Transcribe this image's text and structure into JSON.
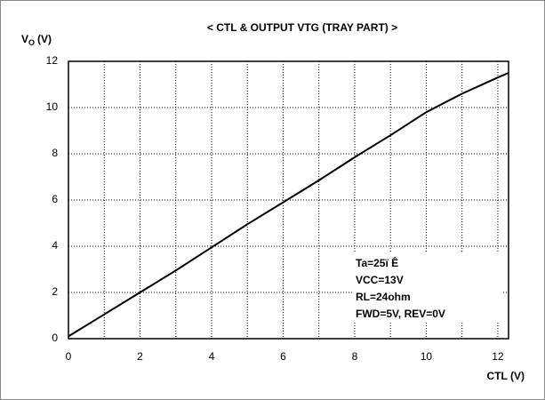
{
  "chart_data": {
    "type": "line",
    "title": "< CTL & OUTPUT VTG (TRAY PART) >",
    "y_label": {
      "symbol": "V",
      "subscript": "O",
      "unit": "(V)"
    },
    "x_label": "CTL (V)",
    "annotations": [
      "Ta=25ï Ê",
      "VCC=13V",
      "RL=24ohm",
      "FWD=5V, REV=0V"
    ],
    "x": [
      0,
      1,
      2,
      3,
      4,
      5,
      6,
      7,
      8,
      9,
      10,
      11,
      12,
      12.3
    ],
    "series": [
      {
        "name": "VO",
        "color": "#000000",
        "values": [
          0.1,
          1.05,
          2.0,
          2.95,
          3.95,
          4.95,
          5.9,
          6.85,
          7.85,
          8.8,
          9.8,
          10.6,
          11.3,
          11.5
        ]
      }
    ],
    "xlim": [
      0,
      12.3
    ],
    "xticks": [
      0,
      2,
      4,
      6,
      8,
      10,
      12
    ],
    "x_minor_grid": [
      1,
      3,
      5,
      7,
      9,
      11
    ],
    "ylim": [
      0,
      12
    ],
    "yticks": [
      0,
      2,
      4,
      6,
      8,
      10,
      12
    ],
    "grid": true
  }
}
